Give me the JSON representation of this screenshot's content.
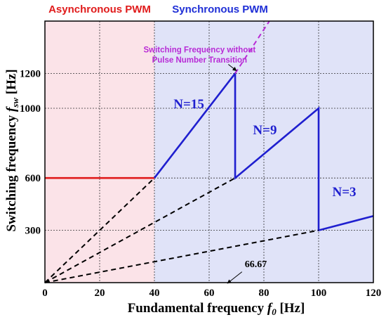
{
  "chart_data": {
    "type": "line",
    "xlim": [
      0,
      120
    ],
    "ylim": [
      0,
      1500
    ],
    "x_ticks": [
      "0",
      "20",
      "40",
      "60",
      "80",
      "100",
      "120"
    ],
    "x_tick_values": [
      0,
      20,
      40,
      60,
      80,
      100,
      120
    ],
    "y_ticks": [
      "300",
      "600",
      "1000",
      "1200"
    ],
    "y_tick_values": [
      300,
      600,
      1000,
      1200
    ],
    "xlabel": {
      "pre": "Fundamental frequency ",
      "sym": "f",
      "sub": "0",
      "post": " [Hz]"
    },
    "ylabel": {
      "pre": "Switching frequency ",
      "sym": "f",
      "sub": "sw",
      "post": " [Hz]"
    },
    "grid": true,
    "regions": [
      {
        "label": "Asynchronous PWM",
        "x_range": [
          0,
          40
        ],
        "color": "#fbe3e8",
        "label_color": "#e01b1b"
      },
      {
        "label": "Synchronous PWM",
        "x_range": [
          40,
          120
        ],
        "color": "#e0e3f8",
        "label_color": "#1f2fd6"
      }
    ],
    "series": [
      {
        "style": "solid",
        "color": "#e01b1b",
        "points": [
          [
            0,
            600
          ],
          [
            40,
            600
          ]
        ]
      },
      {
        "style": "solid",
        "color": "#1f1fcf",
        "points": [
          [
            40,
            600
          ],
          [
            69.5,
            1200
          ],
          [
            69.5,
            600
          ],
          [
            100,
            1000
          ],
          [
            100,
            300
          ],
          [
            120,
            382
          ]
        ]
      },
      {
        "style": "dashed",
        "color": "#000000",
        "points": [
          [
            0,
            0
          ],
          [
            40,
            600
          ]
        ]
      },
      {
        "style": "dashed",
        "color": "#000000",
        "points": [
          [
            0,
            0
          ],
          [
            69.5,
            600
          ]
        ]
      },
      {
        "style": "dashed",
        "color": "#000000",
        "points": [
          [
            0,
            0
          ],
          [
            100,
            300
          ]
        ]
      },
      {
        "style": "dashed",
        "color": "#b82bd6",
        "points": [
          [
            69.5,
            1200
          ],
          [
            82,
            1500
          ]
        ]
      }
    ],
    "annotations": {
      "n15": {
        "text": "N=15",
        "x": 47,
        "y": 1000
      },
      "n9": {
        "text": "N=9",
        "x": 76,
        "y": 850
      },
      "n3": {
        "text": "N=3",
        "x": 105,
        "y": 495
      },
      "switching_line1": "Switching Frequency without",
      "switching_line2": "Pulse Number Transition",
      "switching_arrow_to": [
        70,
        1215
      ],
      "v6667": {
        "text": "66.67",
        "arrow_to": [
          66.67,
          0
        ]
      }
    }
  }
}
